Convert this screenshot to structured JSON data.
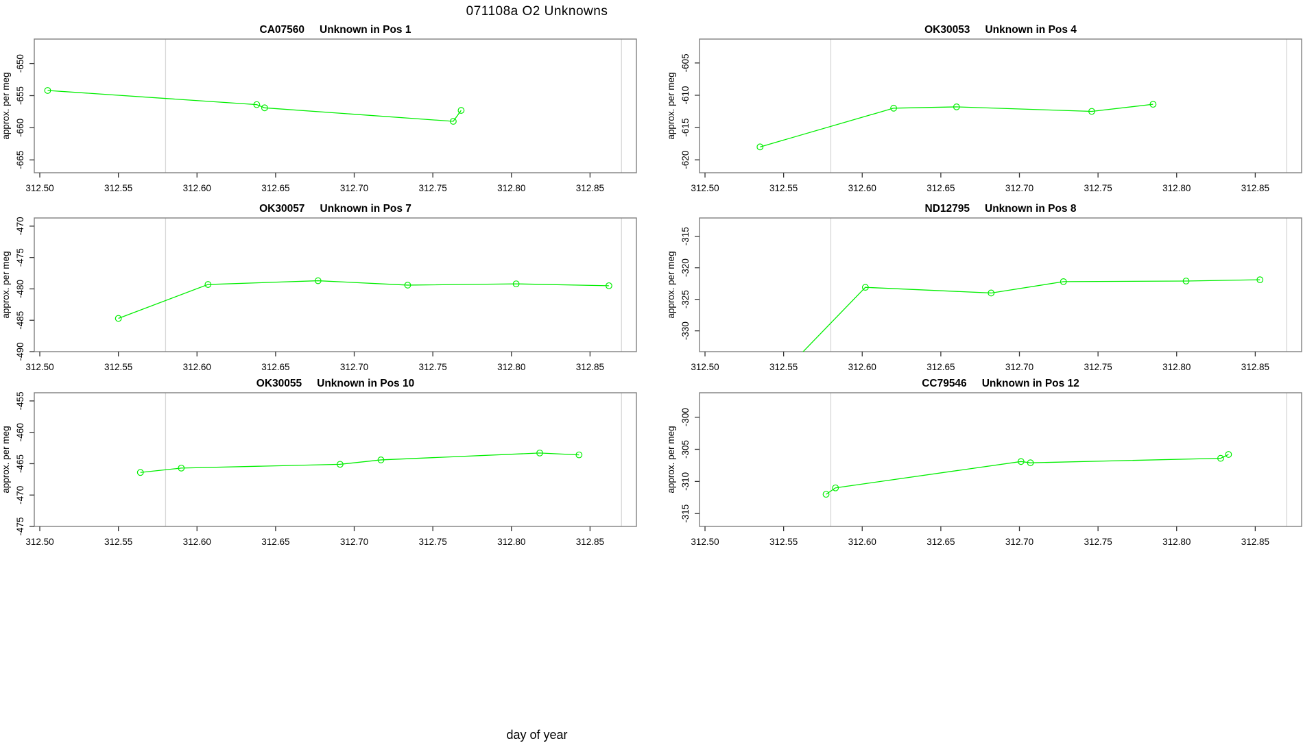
{
  "page_title": "071108a  O2 Unknowns",
  "xlabel": "day of year",
  "ylabel": "approx. per meg",
  "colors": {
    "line": "#00EE00",
    "marker": "#00EE00",
    "ref_line": "#D6D6D6",
    "box": "#7F7F7F",
    "tick": "#333333",
    "text": "#000000"
  },
  "axis": {
    "xlim": [
      312.4965,
      312.8795
    ],
    "xticks": [
      312.5,
      312.55,
      312.6,
      312.65,
      312.7,
      312.75,
      312.8,
      312.85
    ],
    "ref_lines": [
      312.58,
      312.87
    ]
  },
  "chart_data": [
    {
      "type": "line",
      "sample": "CA07560",
      "pos_label": "Unknown in Pos 1",
      "x": [
        312.505,
        312.638,
        312.643,
        312.763,
        312.768
      ],
      "y": [
        -654.2,
        -656.4,
        -656.9,
        -659.0,
        -657.3
      ],
      "ylim": [
        -667.0,
        -646.2
      ],
      "yticks": [
        -650,
        -655,
        -660,
        -665
      ]
    },
    {
      "type": "line",
      "sample": "OK30053",
      "pos_label": "Unknown in Pos 4",
      "x": [
        312.535,
        312.62,
        312.66,
        312.746,
        312.785
      ],
      "y": [
        -618.0,
        -612.0,
        -611.8,
        -612.5,
        -611.4
      ],
      "ylim": [
        -622.0,
        -601.3
      ],
      "yticks": [
        -605,
        -610,
        -615,
        -620
      ]
    },
    {
      "type": "line",
      "sample": "OK30057",
      "pos_label": "Unknown in Pos 7",
      "x": [
        312.55,
        312.607,
        312.677,
        312.734,
        312.803,
        312.862
      ],
      "y": [
        -484.7,
        -479.3,
        -478.7,
        -479.4,
        -479.2,
        -479.5
      ],
      "ylim": [
        -490.0,
        -468.7
      ],
      "yticks": [
        -470,
        -475,
        -480,
        -485,
        -490
      ]
    },
    {
      "type": "line",
      "sample": "ND12795",
      "pos_label": "Unknown in Pos 8",
      "x": [
        312.55,
        312.602,
        312.682,
        312.728,
        312.806,
        312.853
      ],
      "y": [
        -336.5,
        -323.1,
        -324.0,
        -322.2,
        -322.1,
        -321.9
      ],
      "ylim": [
        -333.3,
        -312.1
      ],
      "yticks": [
        -315,
        -320,
        -325,
        -330
      ]
    },
    {
      "type": "line",
      "sample": "OK30055",
      "pos_label": "Unknown in Pos 10",
      "x": [
        312.564,
        312.59,
        312.691,
        312.717,
        312.818,
        312.843
      ],
      "y": [
        -466.4,
        -465.7,
        -465.1,
        -464.4,
        -463.3,
        -463.6
      ],
      "ylim": [
        -475.0,
        -453.7
      ],
      "yticks": [
        -455,
        -460,
        -465,
        -470,
        -475
      ]
    },
    {
      "type": "line",
      "sample": "CC79546",
      "pos_label": "Unknown in Pos 12",
      "x": [
        312.577,
        312.583,
        312.701,
        312.707,
        312.828,
        312.833
      ],
      "y": [
        -312.0,
        -311.0,
        -306.9,
        -307.1,
        -306.4,
        -305.8
      ],
      "ylim": [
        -317.0,
        -296.2
      ],
      "yticks": [
        -300,
        -305,
        -310,
        -315
      ]
    }
  ]
}
